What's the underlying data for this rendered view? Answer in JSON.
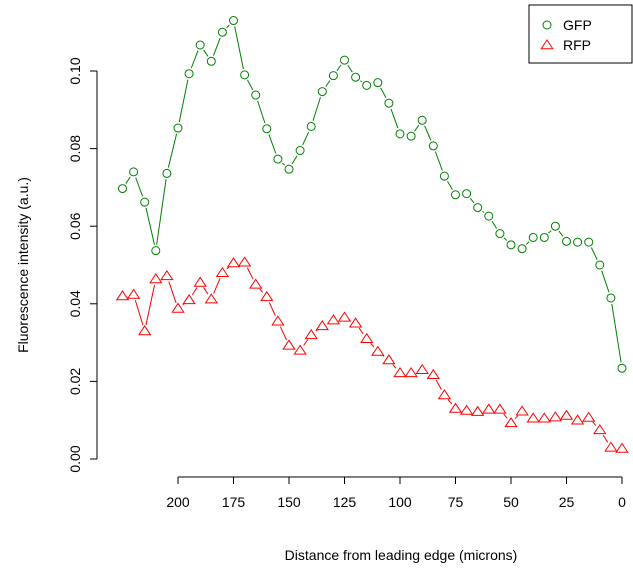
{
  "chart_data": {
    "type": "line",
    "xlabel": "Distance from leading edge (microns)",
    "ylabel": "Fluorescence intensity (a.u.)",
    "x_reversed": true,
    "xlim": [
      0,
      225
    ],
    "ylim": [
      0,
      0.11
    ],
    "x_ticks": [
      200,
      175,
      150,
      125,
      100,
      75,
      50,
      25,
      0
    ],
    "y_ticks": [
      0.0,
      0.02,
      0.04,
      0.06,
      0.08,
      0.1
    ],
    "x_tick_labels": [
      "200",
      "175",
      "150",
      "125",
      "100",
      "75",
      "50",
      "25",
      "0"
    ],
    "y_tick_labels": [
      "0.00",
      "0.02",
      "0.04",
      "0.06",
      "0.08",
      "0.10"
    ],
    "x": [
      225,
      220,
      215,
      210,
      205,
      200,
      195,
      190,
      185,
      180,
      175,
      170,
      165,
      160,
      155,
      150,
      145,
      140,
      135,
      130,
      125,
      120,
      115,
      110,
      105,
      100,
      95,
      90,
      85,
      80,
      75,
      70,
      65,
      60,
      55,
      50,
      45,
      40,
      35,
      30,
      25,
      20,
      15,
      10,
      5,
      0
    ],
    "series": [
      {
        "name": "GFP",
        "color": "#008000",
        "marker": "circle",
        "values": [
          0.0697,
          0.074,
          0.0662,
          0.0537,
          0.0736,
          0.0853,
          0.0993,
          0.1067,
          0.1025,
          0.11,
          0.113,
          0.099,
          0.0938,
          0.0851,
          0.0773,
          0.0747,
          0.0795,
          0.0857,
          0.0947,
          0.0988,
          0.1028,
          0.0984,
          0.0963,
          0.097,
          0.0917,
          0.0838,
          0.0832,
          0.0873,
          0.0807,
          0.0729,
          0.0681,
          0.0684,
          0.0648,
          0.0626,
          0.0581,
          0.0552,
          0.0542,
          0.0571,
          0.0571,
          0.06,
          0.0561,
          0.0559,
          0.0559,
          0.05,
          0.0415,
          0.0234
        ]
      },
      {
        "name": "RFP",
        "color": "#ff0000",
        "marker": "triangle",
        "values": [
          0.042,
          0.0424,
          0.033,
          0.0464,
          0.0472,
          0.0388,
          0.041,
          0.0455,
          0.0412,
          0.048,
          0.0505,
          0.0507,
          0.045,
          0.0418,
          0.0355,
          0.0293,
          0.028,
          0.032,
          0.0343,
          0.0358,
          0.0365,
          0.035,
          0.031,
          0.0277,
          0.0255,
          0.0222,
          0.0222,
          0.023,
          0.0217,
          0.0165,
          0.013,
          0.0125,
          0.0122,
          0.0128,
          0.0128,
          0.0093,
          0.0123,
          0.0105,
          0.0105,
          0.0108,
          0.0112,
          0.01,
          0.0107,
          0.0075,
          0.003,
          0.0027
        ]
      }
    ],
    "legend": {
      "placement": "top-right",
      "entries": [
        "GFP",
        "RFP"
      ]
    },
    "grid": false
  }
}
